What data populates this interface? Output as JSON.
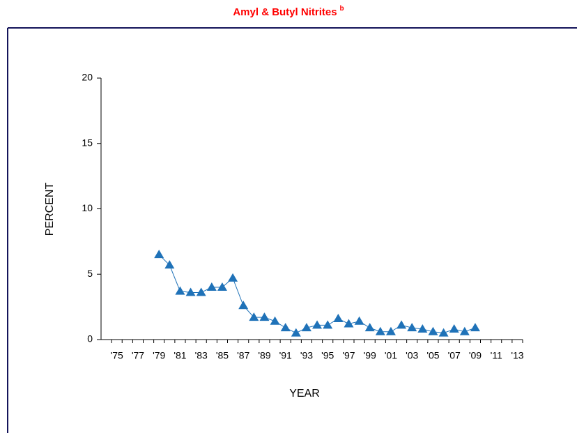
{
  "chart_data": {
    "type": "line",
    "title": "Amyl & Butyl Nitrites",
    "title_note": "b",
    "y_label": "PERCENT",
    "x_label": "YEAR",
    "categories": [
      null,
      "'75",
      null,
      "'77",
      null,
      "'79",
      null,
      "'81",
      null,
      "'83",
      null,
      "'85",
      null,
      "'87",
      null,
      "'89",
      null,
      "'91",
      null,
      "'93",
      null,
      "'95",
      null,
      "'97",
      null,
      "'99",
      null,
      "'01",
      null,
      "'03",
      null,
      "'05",
      null,
      "'07",
      null,
      "'09",
      null,
      "'11",
      null,
      "'13"
    ],
    "series": [
      {
        "name": "Amyl & Butyl Nitrites",
        "color": "#1f72b8",
        "values": [
          null,
          null,
          null,
          null,
          null,
          6.5,
          5.7,
          3.7,
          3.6,
          3.6,
          4.0,
          4.0,
          4.7,
          2.6,
          1.7,
          1.7,
          1.4,
          0.9,
          0.5,
          0.9,
          1.1,
          1.1,
          1.6,
          1.2,
          1.4,
          0.9,
          0.6,
          0.6,
          1.1,
          0.9,
          0.8,
          0.6,
          0.5,
          0.8,
          0.6,
          0.9,
          null,
          null,
          null,
          null
        ]
      }
    ],
    "ylim": [
      0,
      20
    ],
    "yticks": [
      0,
      5,
      10,
      15,
      20
    ]
  }
}
